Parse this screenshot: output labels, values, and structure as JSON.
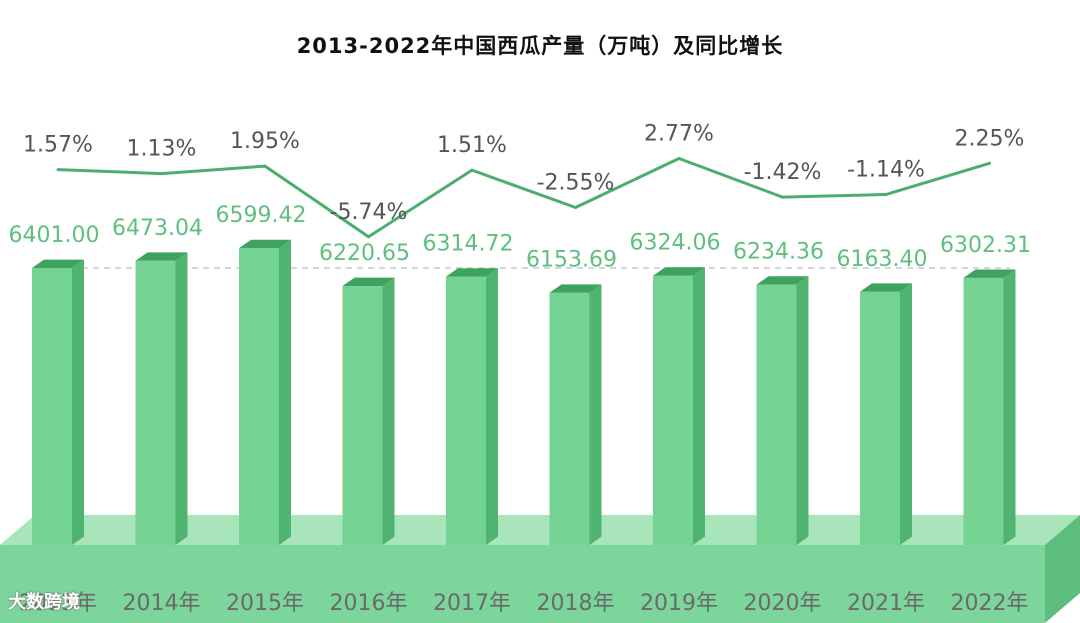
{
  "chart_title": "2013-2022年中国西瓜产量（万吨）及同比增长",
  "watermark": "大数跨境",
  "colors": {
    "bar_front": "#74d392",
    "bar_side": "#4fb470",
    "bar_top": "#3fa35f",
    "base_front": "#7cd59a",
    "base_top": "#a8e5bb",
    "base_side": "#5dbd7c",
    "line": "#4cae6e",
    "value_text": "#5fbf7f",
    "growth_text": "#555555",
    "reference_line": "#c9c9c9"
  },
  "chart_data": {
    "type": "bar",
    "title": "2013-2022年中国西瓜产量（万吨）及同比增长",
    "categories": [
      "2013年",
      "2014年",
      "2015年",
      "2016年",
      "2017年",
      "2018年",
      "2019年",
      "2020年",
      "2021年",
      "2022年"
    ],
    "series": [
      {
        "values": [
          6401.0,
          6473.04,
          6599.42,
          6220.65,
          6314.72,
          6153.69,
          6324.06,
          6234.36,
          6163.4,
          6302.31
        ],
        "labels": [
          "6401.00",
          "6473.04",
          "6599.42",
          "6220.65",
          "6314.72",
          "6153.69",
          "6324.06",
          "6234.36",
          "6163.40",
          "6302.31"
        ]
      },
      {
        "values": [
          1.57,
          1.13,
          1.95,
          -5.74,
          1.51,
          -2.55,
          2.77,
          -1.42,
          -1.14,
          2.25
        ],
        "labels": [
          "1.57%",
          "1.13%",
          "1.95%",
          "-5.74%",
          "1.51%",
          "-2.55%",
          "2.77%",
          "-1.42%",
          "-1.14%",
          "2.25%"
        ]
      }
    ],
    "grid": false,
    "legend": "none"
  }
}
